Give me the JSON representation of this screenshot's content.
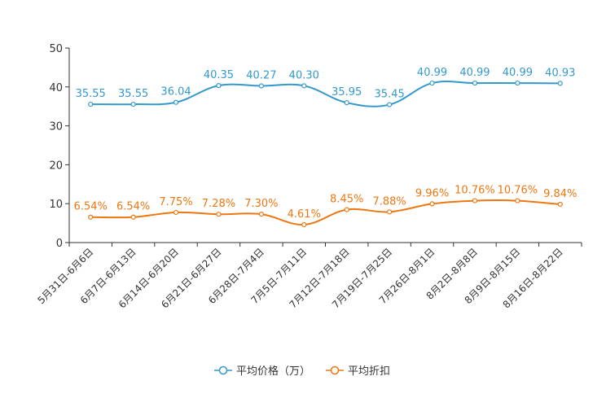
{
  "chart_data": {
    "type": "line",
    "categories": [
      "5月31日-6月6日",
      "6月7日-6月13日",
      "6月14日-6月20日",
      "6月21日-6月27日",
      "6月28日-7月4日",
      "7月5日-7月11日",
      "7月12日-7月18日",
      "7月19日-7月25日",
      "7月26日-8月1日",
      "8月2日-8月8日",
      "8月9日-8月15日",
      "8月16日-8月22日"
    ],
    "ylim": [
      0,
      50
    ],
    "yticks": [
      0,
      10,
      20,
      30,
      40,
      50
    ],
    "ytick_labels": [
      "0",
      "10",
      "20",
      "30",
      "40",
      "50"
    ],
    "legend_position": "bottom",
    "series": [
      {
        "name": "平均价格（万）",
        "color": "#3399cc",
        "values": [
          35.55,
          35.55,
          36.04,
          40.35,
          40.27,
          40.3,
          35.95,
          35.45,
          40.99,
          40.99,
          40.99,
          40.93
        ],
        "labels": [
          "35.55",
          "35.55",
          "36.04",
          "40.35",
          "40.27",
          "40.30",
          "35.95",
          "35.45",
          "40.99",
          "40.99",
          "40.99",
          "40.93"
        ]
      },
      {
        "name": "平均折扣",
        "color": "#ee7711",
        "values": [
          6.54,
          6.54,
          7.75,
          7.28,
          7.3,
          4.61,
          8.45,
          7.88,
          9.96,
          10.76,
          10.76,
          9.84
        ],
        "labels": [
          "6.54%",
          "6.54%",
          "7.75%",
          "7.28%",
          "7.30%",
          "4.61%",
          "8.45%",
          "7.88%",
          "9.96%",
          "10.76%",
          "10.76%",
          "9.84%"
        ]
      }
    ]
  }
}
